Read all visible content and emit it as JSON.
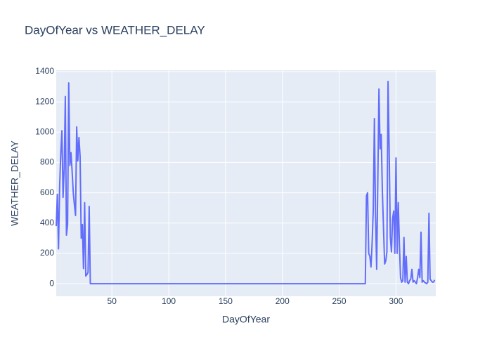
{
  "chart_data": {
    "type": "line",
    "title": "DayOfYear vs WEATHER_DELAY",
    "x_label": "DayOfYear",
    "y_label": "WEATHER_DELAY",
    "x": [
      1,
      2,
      3,
      4,
      5,
      6,
      7,
      8,
      9,
      10,
      11,
      12,
      13,
      14,
      15,
      16,
      17,
      18,
      19,
      20,
      21,
      22,
      23,
      24,
      25,
      26,
      27,
      28,
      29,
      30,
      31,
      32,
      273,
      274,
      275,
      276,
      277,
      278,
      279,
      280,
      281,
      282,
      283,
      284,
      285,
      286,
      287,
      288,
      289,
      290,
      291,
      292,
      293,
      294,
      295,
      296,
      297,
      298,
      299,
      300,
      301,
      302,
      303,
      304,
      305,
      306,
      307,
      308,
      309,
      310,
      311,
      312,
      313,
      314,
      315,
      316,
      317,
      318,
      319,
      320,
      321,
      322,
      323,
      324,
      325,
      326,
      327,
      328,
      329,
      330,
      331,
      332,
      333,
      334
    ],
    "series": [
      {
        "name": "WEATHER_DELAY",
        "color": "#636efa",
        "values": [
          380,
          590,
          230,
          640,
          860,
          1010,
          570,
          760,
          1235,
          320,
          390,
          1325,
          780,
          865,
          740,
          600,
          520,
          450,
          1035,
          810,
          965,
          840,
          300,
          390,
          100,
          535,
          50,
          60,
          75,
          510,
          0,
          0,
          0,
          580,
          600,
          200,
          180,
          110,
          270,
          490,
          1090,
          450,
          95,
          680,
          1285,
          890,
          985,
          610,
          370,
          130,
          150,
          210,
          1335,
          880,
          310,
          210,
          430,
          480,
          200,
          830,
          200,
          535,
          260,
          40,
          10,
          20,
          305,
          10,
          180,
          10,
          0,
          20,
          30,
          95,
          10,
          20,
          10,
          0,
          40,
          95,
          40,
          340,
          10,
          20,
          10,
          5,
          0,
          10,
          465,
          30,
          20,
          10,
          10,
          25
        ]
      }
    ],
    "xlim": [
      1,
      335
    ],
    "ylim": [
      -83,
      1409
    ],
    "xticks": [
      50,
      100,
      150,
      200,
      250,
      300
    ],
    "yticks": [
      0,
      200,
      400,
      600,
      800,
      1000,
      1200,
      1400
    ],
    "grid": true
  }
}
